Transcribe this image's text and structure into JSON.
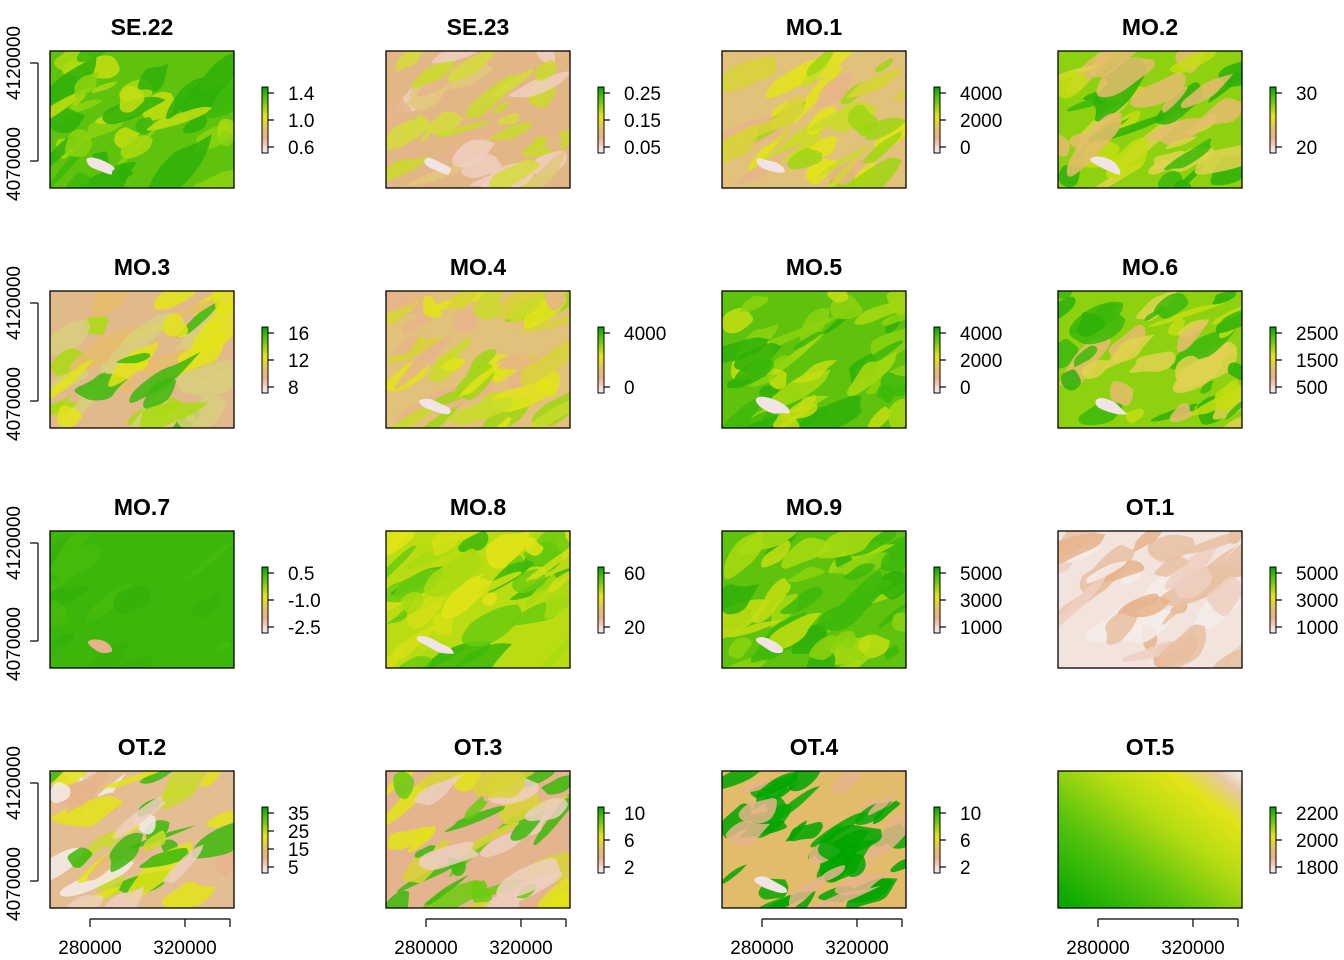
{
  "figure": {
    "colors": {
      "ramp": [
        "#F2F2F2",
        "#EECFC1",
        "#E6B48C",
        "#E6BC6E",
        "#E1D44F",
        "#E3E418",
        "#A9DA11",
        "#6BCB0E",
        "#3CB80A",
        "#00A600"
      ],
      "frame": "#000000",
      "background": "#FFFFFF"
    },
    "x_ticks": [
      "280000",
      "320000"
    ],
    "y_ticks": [
      "4070000",
      "4120000"
    ]
  },
  "chart_data": [
    {
      "type": "heatmap",
      "title": "SE.22",
      "legend_ticks": [
        "1.4",
        "1.0",
        "0.6"
      ],
      "pattern": "green"
    },
    {
      "type": "heatmap",
      "title": "SE.23",
      "legend_ticks": [
        "0.25",
        "0.15",
        "0.05"
      ],
      "pattern": "tan"
    },
    {
      "type": "heatmap",
      "title": "MO.1",
      "legend_ticks": [
        "4000",
        "2000",
        "0"
      ],
      "pattern": "tanyellow"
    },
    {
      "type": "heatmap",
      "title": "MO.2",
      "legend_ticks": [
        "30",
        "20"
      ],
      "pattern": "greenmix"
    },
    {
      "type": "heatmap",
      "title": "MO.3",
      "legend_ticks": [
        "16",
        "12",
        "8"
      ],
      "pattern": "tanmix"
    },
    {
      "type": "heatmap",
      "title": "MO.4",
      "legend_ticks": [
        "4000",
        "0"
      ],
      "pattern": "tanyellow"
    },
    {
      "type": "heatmap",
      "title": "MO.5",
      "legend_ticks": [
        "4000",
        "2000",
        "0"
      ],
      "pattern": "green"
    },
    {
      "type": "heatmap",
      "title": "MO.6",
      "legend_ticks": [
        "2500",
        "1500",
        "500"
      ],
      "pattern": "greenmix"
    },
    {
      "type": "heatmap",
      "title": "MO.7",
      "legend_ticks": [
        "0.5",
        "-1.0",
        "-2.5"
      ],
      "pattern": "solidgreen"
    },
    {
      "type": "heatmap",
      "title": "MO.8",
      "legend_ticks": [
        "60",
        "20"
      ],
      "pattern": "yellowgreen"
    },
    {
      "type": "heatmap",
      "title": "MO.9",
      "legend_ticks": [
        "5000",
        "3000",
        "1000"
      ],
      "pattern": "green"
    },
    {
      "type": "heatmap",
      "title": "OT.1",
      "legend_ticks": [
        "5000",
        "3000",
        "1000"
      ],
      "pattern": "pink"
    },
    {
      "type": "heatmap",
      "title": "OT.2",
      "legend_ticks": [
        "35",
        "25",
        "15",
        "5"
      ],
      "pattern": "categorical"
    },
    {
      "type": "heatmap",
      "title": "OT.3",
      "legend_ticks": [
        "10",
        "6",
        "2"
      ],
      "pattern": "categorical2"
    },
    {
      "type": "heatmap",
      "title": "OT.4",
      "legend_ticks": [
        "10",
        "6",
        "2"
      ],
      "pattern": "darkgreen"
    },
    {
      "type": "heatmap",
      "title": "OT.5",
      "legend_ticks": [
        "2200",
        "2000",
        "1800"
      ],
      "pattern": "gradient"
    }
  ]
}
